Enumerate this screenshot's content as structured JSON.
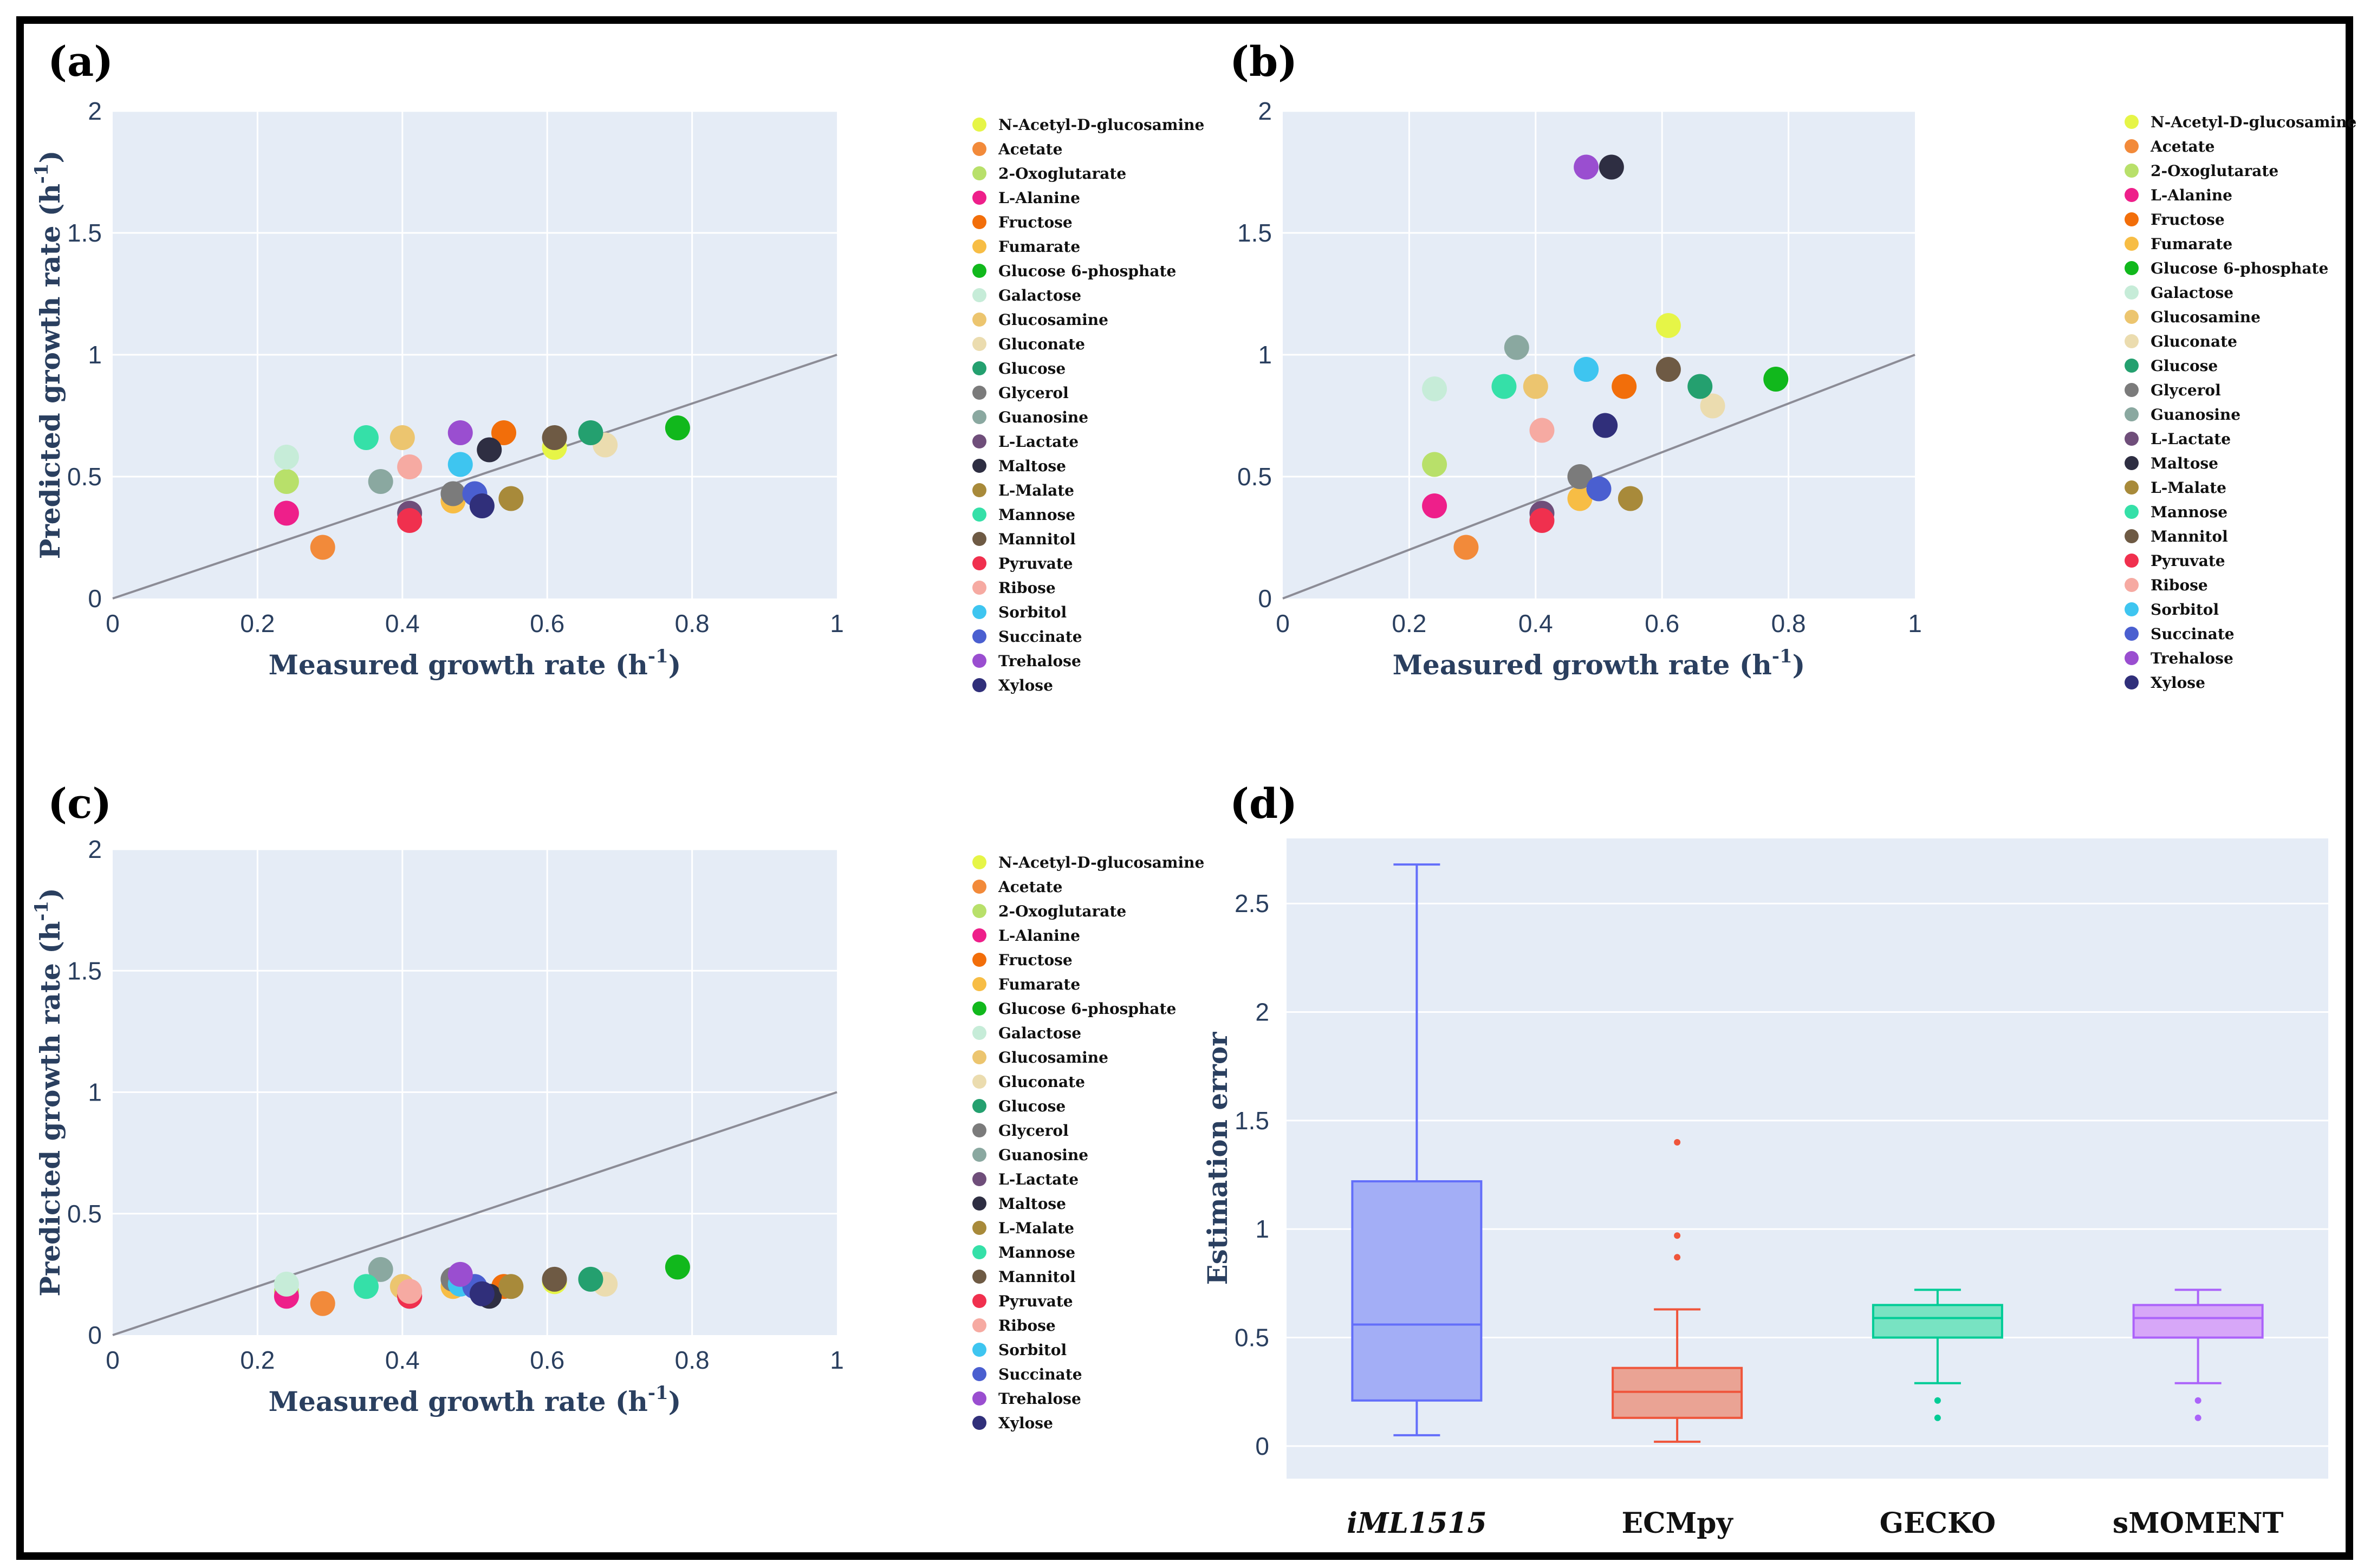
{
  "legend_entries": [
    {
      "name": "N-Acetyl-D-glucosamine",
      "color": "#e6f547"
    },
    {
      "name": "Acetate",
      "color": "#f28a3a"
    },
    {
      "name": "2-Oxoglutarate",
      "color": "#b8e06a"
    },
    {
      "name": "L-Alanine",
      "color": "#ee1f8a"
    },
    {
      "name": "Fructose",
      "color": "#f26e0a"
    },
    {
      "name": "Fumarate",
      "color": "#f7bd45"
    },
    {
      "name": "Glucose 6-phosphate",
      "color": "#11b81c"
    },
    {
      "name": "Galactose",
      "color": "#c6ecd8"
    },
    {
      "name": "Glucosamine",
      "color": "#ecc56f"
    },
    {
      "name": "Gluconate",
      "color": "#ebdcaf"
    },
    {
      "name": "Glucose",
      "color": "#24a06f"
    },
    {
      "name": "Glycerol",
      "color": "#7b7b7b"
    },
    {
      "name": "Guanosine",
      "color": "#8aa8a0"
    },
    {
      "name": "L-Lactate",
      "color": "#6f4e7a"
    },
    {
      "name": "Maltose",
      "color": "#2e2e42"
    },
    {
      "name": "L-Malate",
      "color": "#a88a3a"
    },
    {
      "name": "Mannose",
      "color": "#35e0a8"
    },
    {
      "name": "Mannitol",
      "color": "#6e5a44"
    },
    {
      "name": "Pyruvate",
      "color": "#f0304e"
    },
    {
      "name": "Ribose",
      "color": "#f6aaa2"
    },
    {
      "name": "Sorbitol",
      "color": "#3ec5f0"
    },
    {
      "name": "Succinate",
      "color": "#4a5fd0"
    },
    {
      "name": "Trehalose",
      "color": "#9a4ed0"
    },
    {
      "name": "Xylose",
      "color": "#302f7a"
    }
  ],
  "chart_data": [
    {
      "panel": "(a)",
      "type": "scatter",
      "xlabel": "Measured growth rate (h",
      "ylabel": "Predicted growth rate (h",
      "unit_sup": "-1",
      "unit_close": ")",
      "xlim": [
        0,
        1
      ],
      "ylim": [
        0,
        2
      ],
      "xticks": [
        "0",
        "0.2",
        "0.4",
        "0.6",
        "0.8",
        "1"
      ],
      "yticks": [
        "0",
        "0.5",
        "1",
        "1.5",
        "2"
      ],
      "diagonal": true,
      "points": [
        {
          "name": "N-Acetyl-D-glucosamine",
          "x": 0.61,
          "y": 0.62
        },
        {
          "name": "Acetate",
          "x": 0.29,
          "y": 0.21
        },
        {
          "name": "2-Oxoglutarate",
          "x": 0.24,
          "y": 0.48
        },
        {
          "name": "L-Alanine",
          "x": 0.24,
          "y": 0.35
        },
        {
          "name": "Fructose",
          "x": 0.54,
          "y": 0.68
        },
        {
          "name": "Fumarate",
          "x": 0.47,
          "y": 0.4
        },
        {
          "name": "Glucose 6-phosphate",
          "x": 0.78,
          "y": 0.7
        },
        {
          "name": "Galactose",
          "x": 0.24,
          "y": 0.58
        },
        {
          "name": "Glucosamine",
          "x": 0.4,
          "y": 0.66
        },
        {
          "name": "Gluconate",
          "x": 0.68,
          "y": 0.63
        },
        {
          "name": "Glucose",
          "x": 0.66,
          "y": 0.68
        },
        {
          "name": "Glycerol",
          "x": 0.47,
          "y": 0.43
        },
        {
          "name": "Guanosine",
          "x": 0.37,
          "y": 0.48
        },
        {
          "name": "L-Lactate",
          "x": 0.41,
          "y": 0.35
        },
        {
          "name": "Maltose",
          "x": 0.52,
          "y": 0.61
        },
        {
          "name": "L-Malate",
          "x": 0.55,
          "y": 0.41
        },
        {
          "name": "Mannose",
          "x": 0.35,
          "y": 0.66
        },
        {
          "name": "Mannitol",
          "x": 0.61,
          "y": 0.66
        },
        {
          "name": "Pyruvate",
          "x": 0.41,
          "y": 0.32
        },
        {
          "name": "Ribose",
          "x": 0.41,
          "y": 0.54
        },
        {
          "name": "Sorbitol",
          "x": 0.48,
          "y": 0.55
        },
        {
          "name": "Succinate",
          "x": 0.5,
          "y": 0.43
        },
        {
          "name": "Trehalose",
          "x": 0.48,
          "y": 0.68
        },
        {
          "name": "Xylose",
          "x": 0.51,
          "y": 0.38
        }
      ]
    },
    {
      "panel": "(b)",
      "type": "scatter",
      "xlabel": "Measured growth rate (h",
      "ylabel": "Predicted growth rate (h",
      "unit_sup": "-1",
      "unit_close": ")",
      "xlim": [
        0,
        1
      ],
      "ylim": [
        0,
        2
      ],
      "xticks": [
        "0",
        "0.2",
        "0.4",
        "0.6",
        "0.8",
        "1"
      ],
      "yticks": [
        "0",
        "0.5",
        "1",
        "1.5",
        "2"
      ],
      "diagonal": true,
      "points": [
        {
          "name": "N-Acetyl-D-glucosamine",
          "x": 0.61,
          "y": 1.12
        },
        {
          "name": "Acetate",
          "x": 0.29,
          "y": 0.21
        },
        {
          "name": "2-Oxoglutarate",
          "x": 0.24,
          "y": 0.55
        },
        {
          "name": "L-Alanine",
          "x": 0.24,
          "y": 0.38
        },
        {
          "name": "Fructose",
          "x": 0.54,
          "y": 0.87
        },
        {
          "name": "Fumarate",
          "x": 0.47,
          "y": 0.41
        },
        {
          "name": "Glucose 6-phosphate",
          "x": 0.78,
          "y": 0.9
        },
        {
          "name": "Galactose",
          "x": 0.24,
          "y": 0.86
        },
        {
          "name": "Glucosamine",
          "x": 0.4,
          "y": 0.87
        },
        {
          "name": "Gluconate",
          "x": 0.68,
          "y": 0.79
        },
        {
          "name": "Glucose",
          "x": 0.66,
          "y": 0.87
        },
        {
          "name": "Glycerol",
          "x": 0.47,
          "y": 0.5
        },
        {
          "name": "Guanosine",
          "x": 0.37,
          "y": 1.03
        },
        {
          "name": "L-Lactate",
          "x": 0.41,
          "y": 0.35
        },
        {
          "name": "Maltose",
          "x": 0.52,
          "y": 1.77
        },
        {
          "name": "L-Malate",
          "x": 0.55,
          "y": 0.41
        },
        {
          "name": "Mannose",
          "x": 0.35,
          "y": 0.87
        },
        {
          "name": "Mannitol",
          "x": 0.61,
          "y": 0.94
        },
        {
          "name": "Pyruvate",
          "x": 0.41,
          "y": 0.32
        },
        {
          "name": "Ribose",
          "x": 0.41,
          "y": 0.69
        },
        {
          "name": "Sorbitol",
          "x": 0.48,
          "y": 0.94
        },
        {
          "name": "Succinate",
          "x": 0.5,
          "y": 0.45
        },
        {
          "name": "Trehalose",
          "x": 0.48,
          "y": 1.77
        },
        {
          "name": "Xylose",
          "x": 0.51,
          "y": 0.71
        }
      ]
    },
    {
      "panel": "(c)",
      "type": "scatter",
      "xlabel": "Measured growth rate (h",
      "ylabel": "Predicted growth rate (h",
      "unit_sup": "-1",
      "unit_close": ")",
      "xlim": [
        0,
        1
      ],
      "ylim": [
        0,
        2
      ],
      "xticks": [
        "0",
        "0.2",
        "0.4",
        "0.6",
        "0.8",
        "1"
      ],
      "yticks": [
        "0",
        "0.5",
        "1",
        "1.5",
        "2"
      ],
      "diagonal": true,
      "points": [
        {
          "name": "N-Acetyl-D-glucosamine",
          "x": 0.61,
          "y": 0.22
        },
        {
          "name": "Acetate",
          "x": 0.29,
          "y": 0.13
        },
        {
          "name": "2-Oxoglutarate",
          "x": 0.24,
          "y": 0.18
        },
        {
          "name": "L-Alanine",
          "x": 0.24,
          "y": 0.16
        },
        {
          "name": "Fructose",
          "x": 0.54,
          "y": 0.2
        },
        {
          "name": "Fumarate",
          "x": 0.47,
          "y": 0.2
        },
        {
          "name": "Glucose 6-phosphate",
          "x": 0.78,
          "y": 0.28
        },
        {
          "name": "Galactose",
          "x": 0.24,
          "y": 0.21
        },
        {
          "name": "Glucosamine",
          "x": 0.4,
          "y": 0.2
        },
        {
          "name": "Gluconate",
          "x": 0.68,
          "y": 0.21
        },
        {
          "name": "Glucose",
          "x": 0.66,
          "y": 0.23
        },
        {
          "name": "Glycerol",
          "x": 0.47,
          "y": 0.23
        },
        {
          "name": "Guanosine",
          "x": 0.37,
          "y": 0.27
        },
        {
          "name": "L-Lactate",
          "x": 0.41,
          "y": 0.16
        },
        {
          "name": "Maltose",
          "x": 0.52,
          "y": 0.16
        },
        {
          "name": "L-Malate",
          "x": 0.55,
          "y": 0.2
        },
        {
          "name": "Mannose",
          "x": 0.35,
          "y": 0.2
        },
        {
          "name": "Mannitol",
          "x": 0.61,
          "y": 0.23
        },
        {
          "name": "Pyruvate",
          "x": 0.41,
          "y": 0.16
        },
        {
          "name": "Ribose",
          "x": 0.41,
          "y": 0.18
        },
        {
          "name": "Sorbitol",
          "x": 0.48,
          "y": 0.21
        },
        {
          "name": "Succinate",
          "x": 0.5,
          "y": 0.2
        },
        {
          "name": "Trehalose",
          "x": 0.48,
          "y": 0.25
        },
        {
          "name": "Xylose",
          "x": 0.51,
          "y": 0.17
        }
      ]
    },
    {
      "panel": "(d)",
      "type": "box",
      "ylabel": "Estimation error",
      "ylim": [
        -0.15,
        2.8
      ],
      "yticks": [
        "0",
        "0.5",
        "1",
        "1.5",
        "2",
        "2.5"
      ],
      "categories": [
        "iML1515",
        "ECMpy",
        "GECKO",
        "sMOMENT"
      ],
      "boxes": [
        {
          "name": "iML1515",
          "italic": true,
          "fill": "#a3aef6",
          "stroke": "#636efa",
          "min": 0.05,
          "q1": 0.21,
          "median": 0.56,
          "q3": 1.22,
          "max": 2.68,
          "outliers": []
        },
        {
          "name": "ECMpy",
          "italic": false,
          "fill": "#eaa394",
          "stroke": "#ef553b",
          "min": 0.02,
          "q1": 0.13,
          "median": 0.25,
          "q3": 0.36,
          "max": 0.63,
          "outliers": [
            0.87,
            0.97,
            1.4
          ]
        },
        {
          "name": "GECKO",
          "italic": false,
          "fill": "#78e3c2",
          "stroke": "#00cc96",
          "min": 0.29,
          "q1": 0.5,
          "median": 0.59,
          "q3": 0.65,
          "max": 0.72,
          "outliers": [
            0.13,
            0.21
          ]
        },
        {
          "name": "sMOMENT",
          "italic": false,
          "fill": "#d7a7f8",
          "stroke": "#ab63fa",
          "min": 0.29,
          "q1": 0.5,
          "median": 0.59,
          "q3": 0.65,
          "max": 0.72,
          "outliers": [
            0.13,
            0.21
          ]
        }
      ]
    }
  ]
}
